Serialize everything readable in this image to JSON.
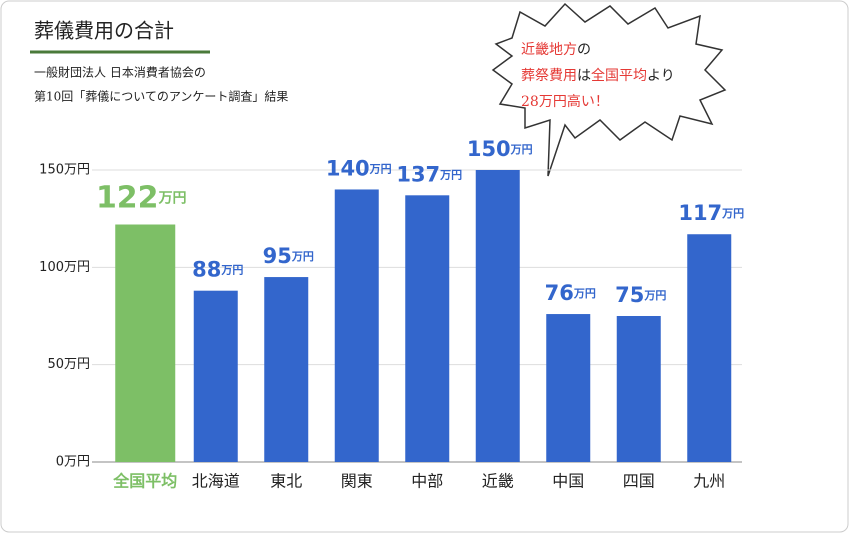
{
  "chart_data": {
    "type": "bar",
    "title": "葬儀費用の合計",
    "subtitle_lines": [
      "一般財団法人 日本消費者協会の",
      "第10回「葬儀についてのアンケート調査」結果"
    ],
    "categories": [
      "全国平均",
      "北海道",
      "東北",
      "関東",
      "中部",
      "近畿",
      "中国",
      "四国",
      "九州"
    ],
    "values": [
      122,
      88,
      95,
      140,
      137,
      150,
      76,
      75,
      117
    ],
    "colors": [
      "#7dbf66",
      "#3366cc",
      "#3366cc",
      "#3366cc",
      "#3366cc",
      "#3366cc",
      "#3366cc",
      "#3366cc",
      "#3366cc"
    ],
    "unit": "万円",
    "ylim": [
      0,
      150
    ],
    "yticks": [
      {
        "value": 0,
        "label": "0万円"
      },
      {
        "value": 50,
        "label": "50万円"
      },
      {
        "value": 100,
        "label": "100万円"
      },
      {
        "value": 150,
        "label": "150万円"
      }
    ],
    "grid": true,
    "annotation": [
      [
        {
          "text": "近畿地方",
          "color": "#e53935"
        },
        {
          "text": "の",
          "color": "#222222"
        }
      ],
      [
        {
          "text": "葬祭費用",
          "color": "#e53935"
        },
        {
          "text": "は",
          "color": "#222222"
        },
        {
          "text": "全国平均",
          "color": "#e53935"
        },
        {
          "text": "より",
          "color": "#222222"
        }
      ],
      [
        {
          "text": "28万円高い！",
          "color": "#e53935"
        }
      ]
    ]
  }
}
